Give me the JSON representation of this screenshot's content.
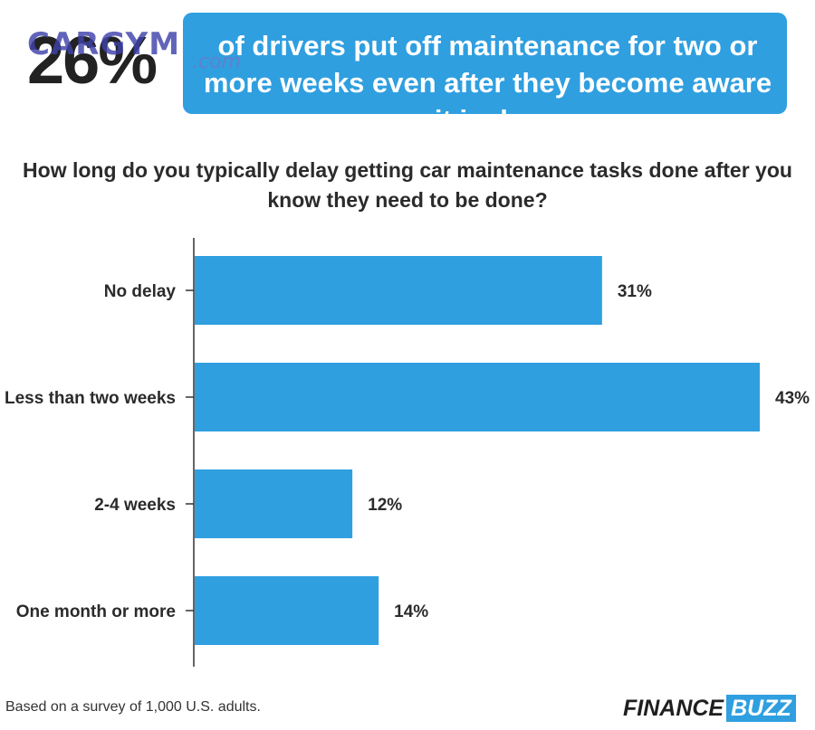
{
  "header": {
    "stat": "26%",
    "statement": "of drivers put off maintenance for two or more weeks even after they become aware it is due",
    "watermark": "CARGYM",
    "watermark_sub": ".com"
  },
  "colors": {
    "bar": "#2f9fe0",
    "text": "#2b2b2b",
    "axis": "#333333"
  },
  "chart_data": {
    "type": "bar",
    "orientation": "horizontal",
    "title": "How long do you typically delay getting car maintenance tasks done after you know they need to be done?",
    "categories": [
      "No delay",
      "Less than two weeks",
      "2-4 weeks",
      "One month or more"
    ],
    "values": [
      31,
      43,
      12,
      14
    ],
    "value_labels": [
      "31%",
      "43%",
      "12%",
      "14%"
    ],
    "xlabel": "",
    "ylabel": "",
    "xlim": [
      0,
      43
    ]
  },
  "footer": {
    "note": "Based on a survey of 1,000 U.S. adults.",
    "brand_main": "FINANCE",
    "brand_accent": "BUZZ"
  }
}
